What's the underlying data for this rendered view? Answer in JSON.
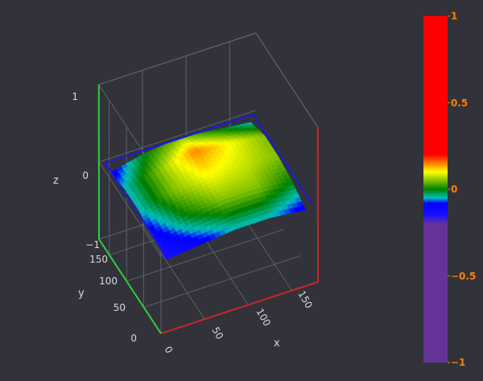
{
  "chart_data": {
    "type": "surface",
    "title": "",
    "xlabel": "x",
    "ylabel": "y",
    "zlabel": "z",
    "x_ticks": [
      "0",
      "50",
      "100",
      "150"
    ],
    "y_ticks": [
      "0",
      "50",
      "100",
      "150"
    ],
    "z_ticks": [
      "−1",
      "0",
      "1"
    ],
    "xlim": [
      0,
      180
    ],
    "ylim": [
      0,
      180
    ],
    "zlim": [
      -1,
      1
    ],
    "x": [
      10,
      50,
      90,
      130,
      170
    ],
    "y": [
      10,
      50,
      90,
      130,
      170
    ],
    "z": [
      [
        -0.15,
        -0.1,
        -0.05,
        -0.05,
        -0.1
      ],
      [
        -0.1,
        0.0,
        0.05,
        0.05,
        0.0
      ],
      [
        -0.05,
        0.05,
        0.1,
        0.08,
        0.05
      ],
      [
        -0.05,
        0.05,
        0.15,
        0.1,
        0.05
      ],
      [
        -0.1,
        0.0,
        0.05,
        0.0,
        -0.05
      ]
    ],
    "plane_z": 0,
    "colorbar": {
      "ticks": [
        "1",
        "0.5",
        "0",
        "−0.5",
        "−1"
      ],
      "tick_values": [
        1,
        0.5,
        0,
        -0.5,
        -1
      ],
      "stops": [
        {
          "value": 1,
          "color": "#ff0000"
        },
        {
          "value": 0.2,
          "color": "#ff0000"
        },
        {
          "value": 0.15,
          "color": "#ff8000"
        },
        {
          "value": 0.1,
          "color": "#ffff00"
        },
        {
          "value": 0.05,
          "color": "#80c000"
        },
        {
          "value": 0.0,
          "color": "#008000"
        },
        {
          "value": -0.05,
          "color": "#00c0c0"
        },
        {
          "value": -0.08,
          "color": "#0000ff"
        },
        {
          "value": -0.15,
          "color": "#1a10ff"
        },
        {
          "value": -0.2,
          "color": "#663399"
        },
        {
          "value": -1,
          "color": "#663399"
        }
      ]
    },
    "colors": {
      "background": "#32333a",
      "x_axis": "#c62828",
      "y_axis": "#2ecc40",
      "z_axis": "#2ecc40",
      "plane": "#1a1adc",
      "grid": "#6a6a70",
      "colorbar_ticks": "#ff7f00"
    }
  }
}
